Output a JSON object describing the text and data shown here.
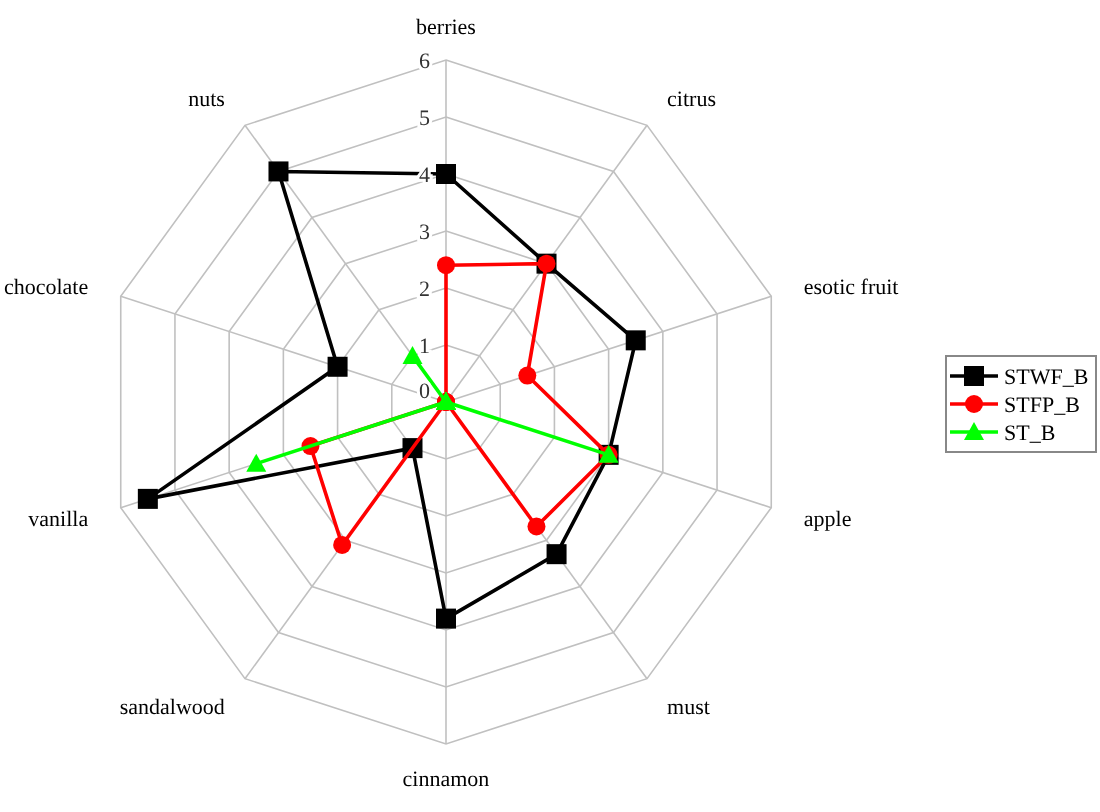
{
  "chart_data": {
    "type": "radar",
    "categories": [
      "berries",
      "citrus",
      "esotic fruit",
      "apple",
      "must",
      "cinnamon",
      "sandalwood",
      "vanilla",
      "chocolate",
      "nuts"
    ],
    "series": [
      {
        "name": "STWF_B",
        "color": "#000000",
        "marker": "square",
        "values": [
          4,
          3,
          3.5,
          3,
          3.3,
          3.8,
          1,
          5.5,
          2,
          5
        ]
      },
      {
        "name": "STFP_B",
        "color": "#ff0000",
        "marker": "circle",
        "values": [
          2.4,
          3,
          1.5,
          3,
          2.7,
          0,
          3.1,
          2.5,
          0,
          0
        ]
      },
      {
        "name": "ST_B",
        "color": "#00ff00",
        "marker": "triangle",
        "values": [
          0,
          0,
          0,
          3,
          0,
          0,
          0,
          3.5,
          0,
          1
        ]
      }
    ],
    "ylim": [
      0,
      6
    ],
    "yticks": [
      0,
      1,
      2,
      3,
      4,
      5,
      6
    ],
    "grid": true,
    "legend": "right"
  }
}
